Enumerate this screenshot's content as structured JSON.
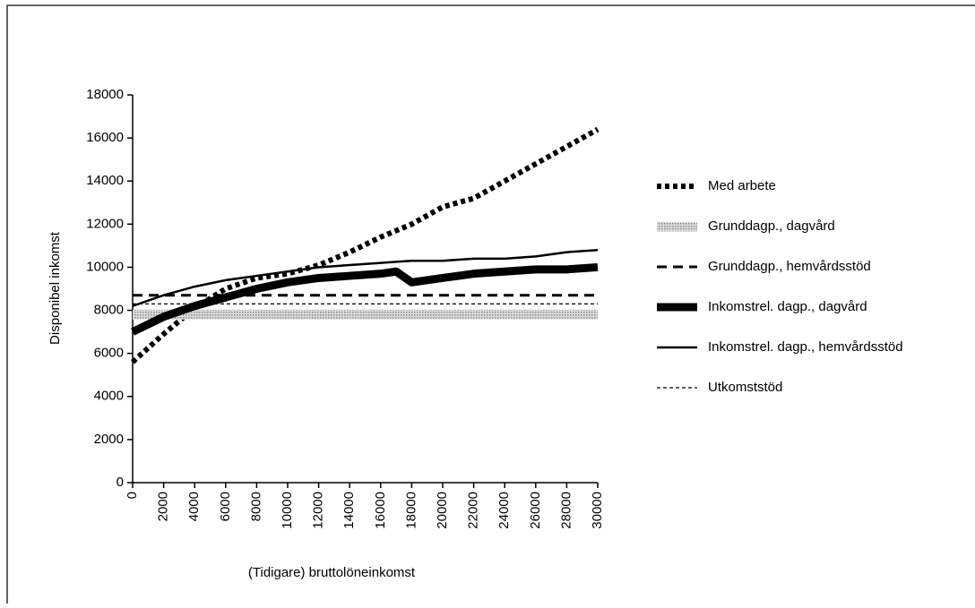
{
  "chart_data": {
    "type": "line",
    "x_label": "(Tidigare) bruttolöneinkomst",
    "y_label": "Disponibel inkomst",
    "x": [
      0,
      2000,
      4000,
      6000,
      8000,
      10000,
      12000,
      14000,
      16000,
      17000,
      18000,
      20000,
      22000,
      24000,
      26000,
      28000,
      30000
    ],
    "xlim": [
      0,
      30000
    ],
    "xticks": [
      0,
      2000,
      4000,
      6000,
      8000,
      10000,
      12000,
      14000,
      16000,
      18000,
      20000,
      22000,
      24000,
      26000,
      28000,
      30000
    ],
    "ylim": [
      0,
      18000
    ],
    "yticks": [
      0,
      2000,
      4000,
      6000,
      8000,
      10000,
      12000,
      14000,
      16000,
      18000
    ],
    "series": [
      {
        "name": "Med arbete",
        "color": "#000000",
        "style": "dotted",
        "values": [
          5600,
          6900,
          8100,
          9000,
          9500,
          9700,
          10100,
          10700,
          11400,
          11700,
          12000,
          12800,
          13200,
          14000,
          14800,
          15600,
          16400
        ]
      },
      {
        "name": "Grunddagp., dagvård",
        "color": "#b0b0b0",
        "style": "band",
        "values": [
          7800,
          7800,
          7800,
          7800,
          7800,
          7800,
          7800,
          7800,
          7800,
          7800,
          7800,
          7800,
          7800,
          7800,
          7800,
          7800,
          7800
        ]
      },
      {
        "name": "Grunddagp., hemvårdsstöd",
        "color": "#000000",
        "style": "dashed",
        "values": [
          8700,
          8700,
          8700,
          8700,
          8700,
          8700,
          8700,
          8700,
          8700,
          8700,
          8700,
          8700,
          8700,
          8700,
          8700,
          8700,
          8700
        ]
      },
      {
        "name": "Inkomstrel. dagp., dagvård",
        "color": "#000000",
        "style": "thick",
        "values": [
          7000,
          7700,
          8200,
          8600,
          9000,
          9300,
          9500,
          9600,
          9700,
          9800,
          9300,
          9500,
          9700,
          9800,
          9900,
          9900,
          10000
        ]
      },
      {
        "name": "Inkomstrel. dagp., hemvårdsstöd",
        "color": "#000000",
        "style": "solid",
        "values": [
          8200,
          8700,
          9100,
          9400,
          9600,
          9800,
          10000,
          10100,
          10200,
          10250,
          10300,
          10300,
          10400,
          10400,
          10500,
          10700,
          10800
        ]
      },
      {
        "name": "Utkomststöd",
        "color": "#000000",
        "style": "thin-dashed",
        "values": [
          8300,
          8300,
          8300,
          8300,
          8300,
          8300,
          8300,
          8300,
          8300,
          8300,
          8300,
          8300,
          8300,
          8300,
          8300,
          8300,
          8300
        ]
      }
    ]
  }
}
